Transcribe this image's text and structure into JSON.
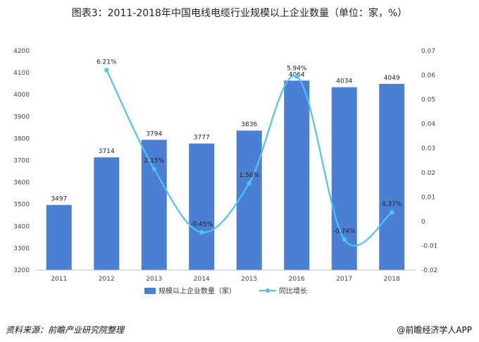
{
  "title": "图表3：2011-2018年中国电线电缆行业规模以上企业数量（单位：家，%）",
  "source": "资料来源：前瞻产业研究院整理",
  "brand": "@前瞻经济学人APP",
  "colors": {
    "bar": "#4a7fd4",
    "line": "#4fc3f0"
  },
  "chart_data": {
    "type": "bar",
    "categories": [
      "2011",
      "2012",
      "2013",
      "2014",
      "2015",
      "2016",
      "2017",
      "2018"
    ],
    "series": [
      {
        "name": "规模以上企业数量（家）",
        "type": "bar",
        "axis": "left",
        "values": [
          3497,
          3714,
          3794,
          3777,
          3836,
          4064,
          4034,
          4049
        ]
      },
      {
        "name": "同比增长",
        "type": "line",
        "axis": "right",
        "values": [
          null,
          0.0621,
          0.0215,
          -0.0045,
          0.0156,
          0.0594,
          -0.0074,
          0.0037
        ]
      }
    ],
    "bar_labels": [
      "3497",
      "3714",
      "3794",
      "3777",
      "3836",
      "4064",
      "4034",
      "4049"
    ],
    "line_labels": [
      "",
      "6.21%",
      "2.15%",
      "-0.45%",
      "1.56%",
      "5.94%",
      "-0.74%",
      "0.37%"
    ],
    "ylim_left": [
      3200,
      4200
    ],
    "yticks_left": [
      "3200",
      "3300",
      "3400",
      "3500",
      "3600",
      "3700",
      "3800",
      "3900",
      "4000",
      "4100",
      "4200"
    ],
    "ylim_right": [
      -0.02,
      0.07
    ],
    "yticks_right": [
      "-0.02",
      "-0.01",
      "0",
      "0.01",
      "0.02",
      "0.03",
      "0.04",
      "0.05",
      "0.06",
      "0.07"
    ],
    "legend_position": "bottom",
    "grid": false
  }
}
